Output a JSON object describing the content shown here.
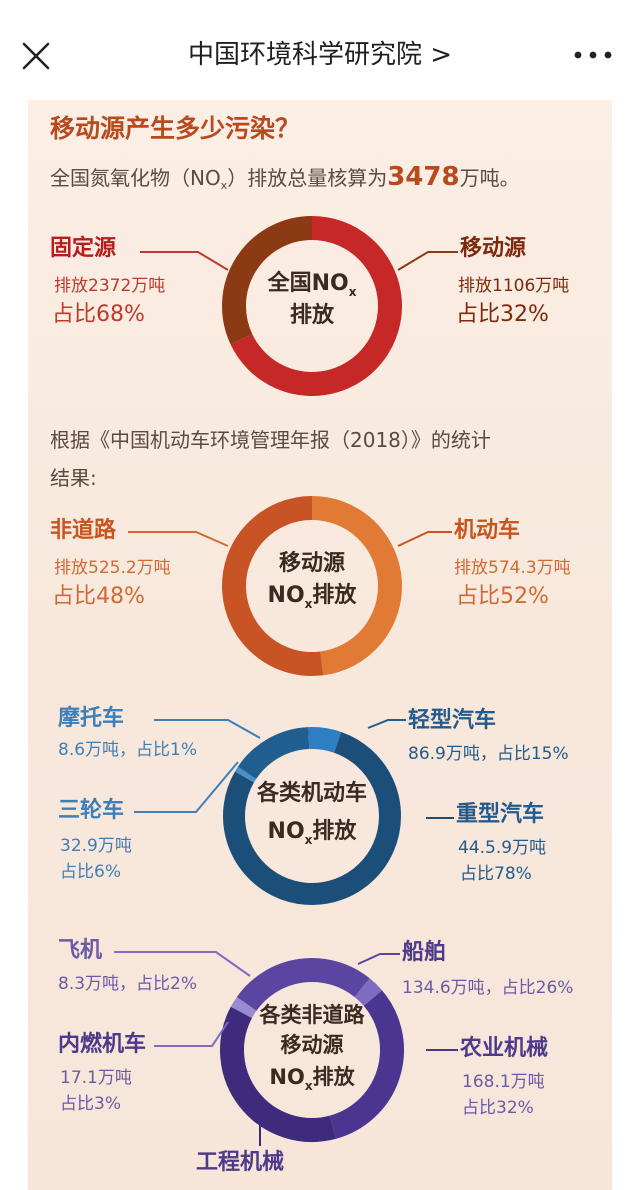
{
  "header": {
    "title": "中国环境科学研究院 >"
  },
  "intro": {
    "heading": "移动源产生多少污染？",
    "sub_prefix": "全国氮氧化物（NO",
    "sub_x": "x",
    "sub_mid": "）排放总量核算为",
    "sub_total": "3478",
    "sub_suffix": "万吨。"
  },
  "chart1": {
    "center_l1": "全国NO",
    "center_x": "x",
    "center_l2": "排放",
    "left": {
      "name": "固定源",
      "amount": "排放2372万吨",
      "share": "占比68%"
    },
    "right": {
      "name": "移动源",
      "amount": "排放1106万吨",
      "share": "占比32%"
    }
  },
  "note": {
    "line1": "根据《中国机动车环境管理年报（2018）》的统计",
    "line2": "结果:"
  },
  "chart2": {
    "center_l1": "移动源",
    "center_l2a": "NO",
    "center_x": "x",
    "center_l2b": "排放",
    "left": {
      "name": "非道路",
      "amount": "排放525.2万吨",
      "share": "占比48%"
    },
    "right": {
      "name": "机动车",
      "amount": "排放574.3万吨",
      "share": "占比52%"
    }
  },
  "chart3": {
    "center_l1": "各类机动车",
    "center_l2a": "NO",
    "center_x": "x",
    "center_l2b": "排放",
    "moto": {
      "name": "摩托车",
      "info": "8.6万吨，占比1%"
    },
    "light": {
      "name": "轻型汽车",
      "info": "86.9万吨，占比15%"
    },
    "tri": {
      "name": "三轮车",
      "amount": "32.9万吨",
      "share": "占比6%"
    },
    "heavy": {
      "name": "重型汽车",
      "amount": "44.5.9万吨",
      "share": "占比78%"
    }
  },
  "chart4": {
    "center_l1": "各类非道路",
    "center_l2": "移动源",
    "center_l3a": "NO",
    "center_x": "x",
    "center_l3b": "排放",
    "plane": {
      "name": "飞机",
      "info": "8.3万吨，占比2%"
    },
    "ship": {
      "name": "船舶",
      "info": "134.6万吨，占比26%"
    },
    "loco": {
      "name": "内燃机车",
      "amount": "17.1万吨",
      "share": "占比3%"
    },
    "agri": {
      "name": "农业机械",
      "amount": "168.1万吨",
      "share": "占比32%"
    },
    "eng": {
      "name": "工程机械"
    }
  },
  "chart_data": [
    {
      "type": "pie",
      "categories": [
        "固定源",
        "移动源"
      ],
      "values": [
        68,
        32
      ],
      "colors": [
        "#c62828",
        "#8b3a14"
      ]
    },
    {
      "type": "pie",
      "categories": [
        "非道路",
        "机动车"
      ],
      "values": [
        48,
        52
      ],
      "colors": [
        "#e07a35",
        "#c85426"
      ]
    },
    {
      "type": "pie",
      "categories": [
        "摩托车",
        "轻型汽车",
        "三轮车",
        "重型汽车"
      ],
      "values": [
        1,
        15,
        6,
        78
      ],
      "colors": [
        "#4a90c8",
        "#1f5e8e",
        "#2d7fc2",
        "#1b4f7a"
      ]
    },
    {
      "type": "pie",
      "categories": [
        "飞机",
        "船舶",
        "内燃机车",
        "农业机械",
        "工程机械"
      ],
      "values": [
        2,
        26,
        3,
        32,
        37
      ],
      "colors": [
        "#9a8bd0",
        "#5a45a0",
        "#7d6cc0",
        "#4a3590",
        "#3e2b7c"
      ]
    }
  ]
}
